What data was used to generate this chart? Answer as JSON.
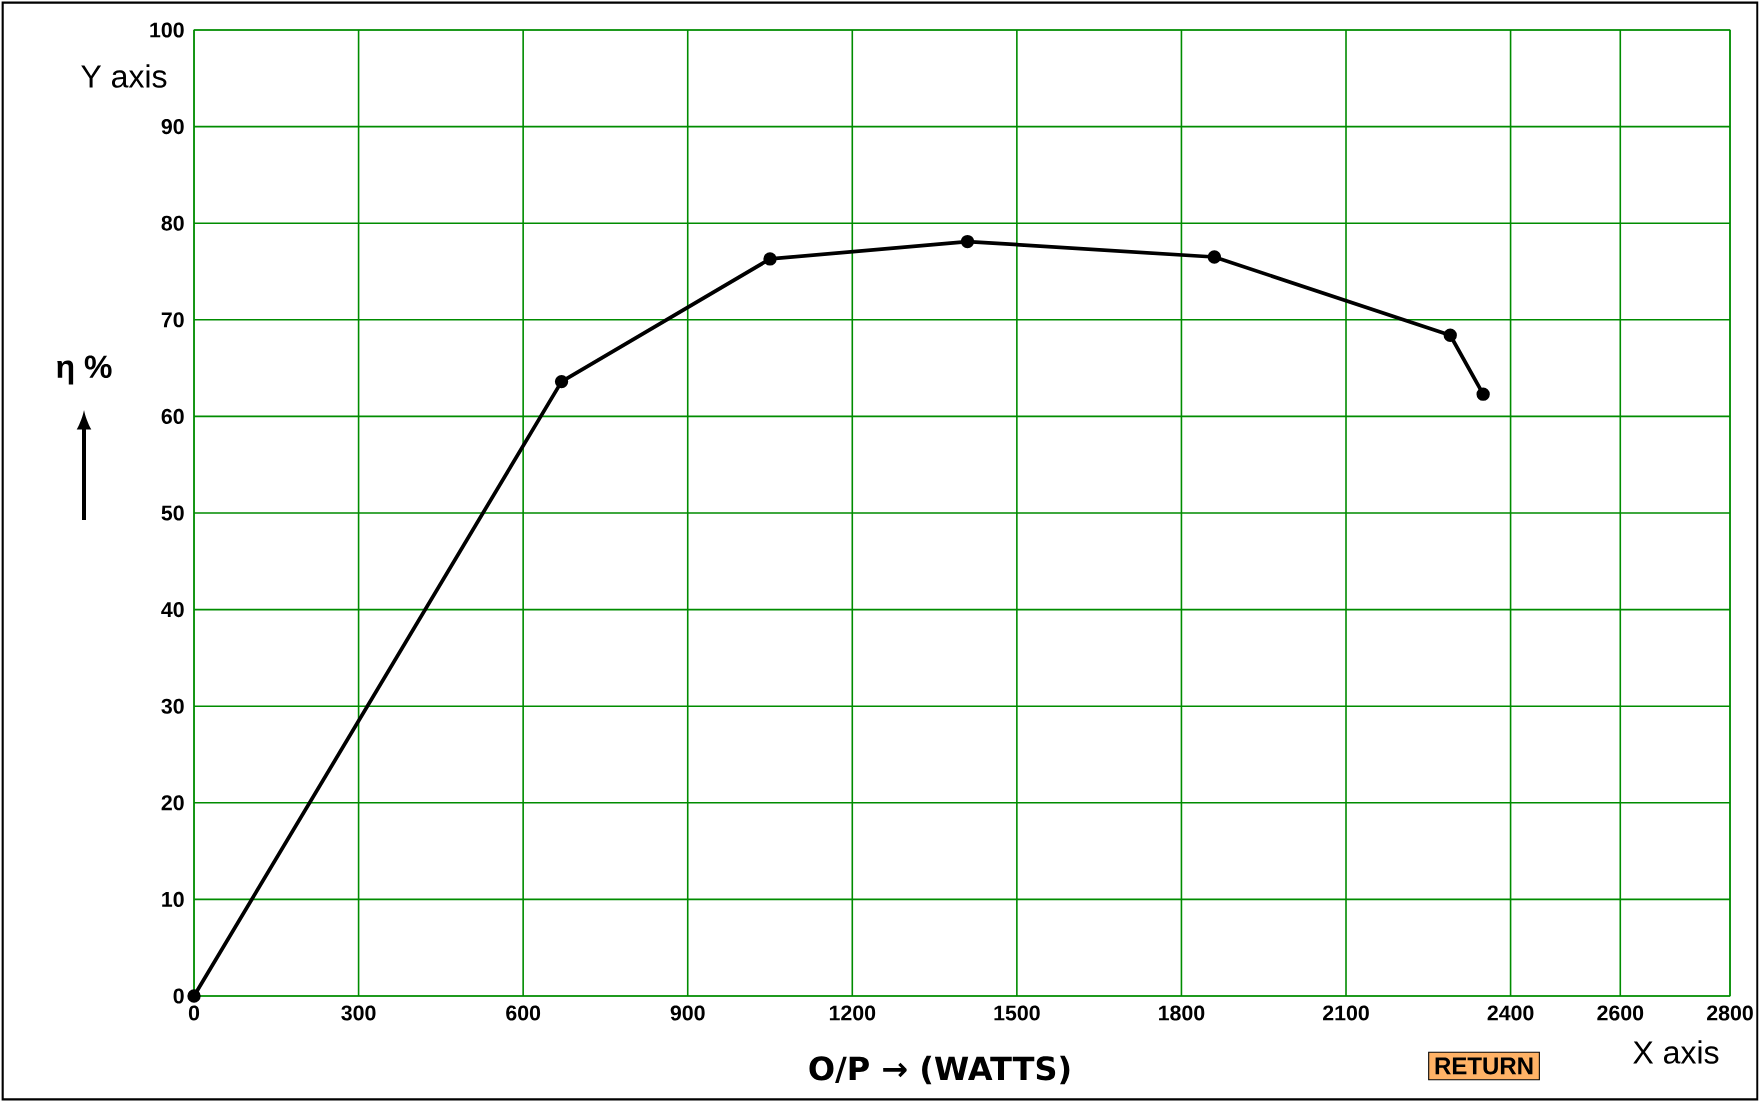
{
  "chart_data": {
    "type": "line",
    "xlabel": "O/P → (WATTS)",
    "ylabel": "η %",
    "x": [
      0,
      670,
      1050,
      1410,
      1860,
      2290,
      2350
    ],
    "series": [
      {
        "color": "#000000",
        "values": [
          0,
          63.6,
          76.3,
          78.1,
          76.5,
          68.4,
          62.3
        ]
      }
    ],
    "xlim": [
      0,
      2800
    ],
    "ylim": [
      0,
      100
    ],
    "xticks": [
      0,
      300,
      600,
      900,
      1200,
      1500,
      1800,
      2100,
      2400,
      2600,
      2800
    ],
    "yticks": [
      0,
      10,
      20,
      30,
      40,
      50,
      60,
      70,
      80,
      90,
      100
    ],
    "grid": true,
    "marker": "circle",
    "line_style": "solid",
    "annotations": [
      "Y axis",
      "X axis",
      "RETURN"
    ]
  }
}
